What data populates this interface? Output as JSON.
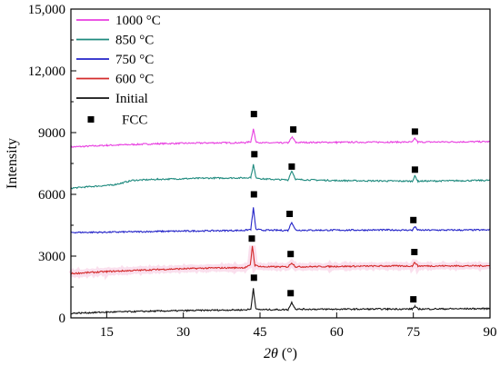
{
  "chart_data": {
    "type": "line",
    "xlabel_italic": "2θ",
    "xlabel_unit": "(°)",
    "ylabel": "Intensity",
    "xlim": [
      8,
      90
    ],
    "ylim": [
      0,
      15000
    ],
    "xticks": [
      15,
      30,
      45,
      60,
      75,
      90
    ],
    "yticks": [
      0,
      3000,
      6000,
      9000,
      12000,
      15000
    ],
    "ytick_labels": [
      "0",
      "3000",
      "6000",
      "9000",
      "12,000",
      "15,000"
    ],
    "grid": false,
    "legend_position": "top-left",
    "marker_legend": "FCC",
    "series": [
      {
        "name": "1000 °C",
        "color": "#e83ee0",
        "points": [
          [
            8,
            8300
          ],
          [
            15,
            8380
          ],
          [
            25,
            8460
          ],
          [
            35,
            8500
          ],
          [
            42,
            8510
          ],
          [
            43.2,
            8560
          ],
          [
            43.7,
            9200
          ],
          [
            44.2,
            8560
          ],
          [
            45.5,
            8500
          ],
          [
            50.5,
            8500
          ],
          [
            51.3,
            8780
          ],
          [
            52,
            8520
          ],
          [
            60,
            8530
          ],
          [
            70,
            8540
          ],
          [
            74.8,
            8540
          ],
          [
            75.3,
            8720
          ],
          [
            75.9,
            8540
          ],
          [
            90,
            8560
          ]
        ],
        "fcc_markers": [
          [
            43.8,
            9900
          ],
          [
            51.5,
            9150
          ],
          [
            75.3,
            9050
          ]
        ]
      },
      {
        "name": "850 °C",
        "color": "#1e8a7e",
        "points": [
          [
            8,
            6300
          ],
          [
            12,
            6380
          ],
          [
            16,
            6450
          ],
          [
            18,
            6550
          ],
          [
            20,
            6680
          ],
          [
            25,
            6730
          ],
          [
            30,
            6760
          ],
          [
            35,
            6790
          ],
          [
            42,
            6800
          ],
          [
            43.2,
            6830
          ],
          [
            43.7,
            7450
          ],
          [
            44.2,
            6820
          ],
          [
            45.5,
            6750
          ],
          [
            50.5,
            6700
          ],
          [
            51.2,
            7150
          ],
          [
            52,
            6720
          ],
          [
            60,
            6670
          ],
          [
            70,
            6650
          ],
          [
            74.8,
            6640
          ],
          [
            75.3,
            6900
          ],
          [
            75.9,
            6640
          ],
          [
            90,
            6680
          ]
        ],
        "fcc_markers": [
          [
            43.9,
            7950
          ],
          [
            51.2,
            7350
          ],
          [
            75.3,
            7200
          ]
        ]
      },
      {
        "name": "750 °C",
        "color": "#2323c8",
        "points": [
          [
            8,
            4150
          ],
          [
            15,
            4160
          ],
          [
            25,
            4200
          ],
          [
            35,
            4230
          ],
          [
            42,
            4250
          ],
          [
            43.2,
            4300
          ],
          [
            43.7,
            5350
          ],
          [
            44.2,
            4300
          ],
          [
            45.5,
            4260
          ],
          [
            50.5,
            4250
          ],
          [
            51.2,
            4650
          ],
          [
            52,
            4260
          ],
          [
            60,
            4260
          ],
          [
            70,
            4270
          ],
          [
            74.8,
            4260
          ],
          [
            75.3,
            4430
          ],
          [
            75.9,
            4260
          ],
          [
            90,
            4270
          ]
        ],
        "fcc_markers": [
          [
            43.8,
            6000
          ],
          [
            50.8,
            5050
          ],
          [
            75.0,
            4750
          ]
        ]
      },
      {
        "name": "600 °C",
        "color": "#d42a2a",
        "points": [
          [
            8,
            2150
          ],
          [
            15,
            2250
          ],
          [
            25,
            2350
          ],
          [
            35,
            2420
          ],
          [
            42,
            2440
          ],
          [
            43.1,
            2550
          ],
          [
            43.5,
            3500
          ],
          [
            44,
            2550
          ],
          [
            45.5,
            2480
          ],
          [
            50.5,
            2480
          ],
          [
            51.2,
            2680
          ],
          [
            52,
            2480
          ],
          [
            60,
            2500
          ],
          [
            70,
            2520
          ],
          [
            74.8,
            2520
          ],
          [
            75.3,
            2700
          ],
          [
            75.9,
            2520
          ],
          [
            90,
            2530
          ]
        ],
        "fcc_markers": [
          [
            43.4,
            3850
          ],
          [
            51.0,
            3100
          ],
          [
            75.2,
            3200
          ]
        ]
      },
      {
        "name": "Initial",
        "color": "#111111",
        "points": [
          [
            8,
            220
          ],
          [
            15,
            280
          ],
          [
            25,
            330
          ],
          [
            35,
            370
          ],
          [
            42,
            390
          ],
          [
            43.2,
            420
          ],
          [
            43.7,
            1450
          ],
          [
            44.2,
            420
          ],
          [
            45.5,
            400
          ],
          [
            50.5,
            400
          ],
          [
            51.2,
            750
          ],
          [
            52,
            420
          ],
          [
            60,
            420
          ],
          [
            70,
            430
          ],
          [
            74.8,
            430
          ],
          [
            75.3,
            560
          ],
          [
            75.9,
            430
          ],
          [
            90,
            450
          ]
        ],
        "fcc_markers": [
          [
            43.8,
            1950
          ],
          [
            51.0,
            1200
          ],
          [
            75.0,
            900
          ]
        ]
      }
    ]
  }
}
